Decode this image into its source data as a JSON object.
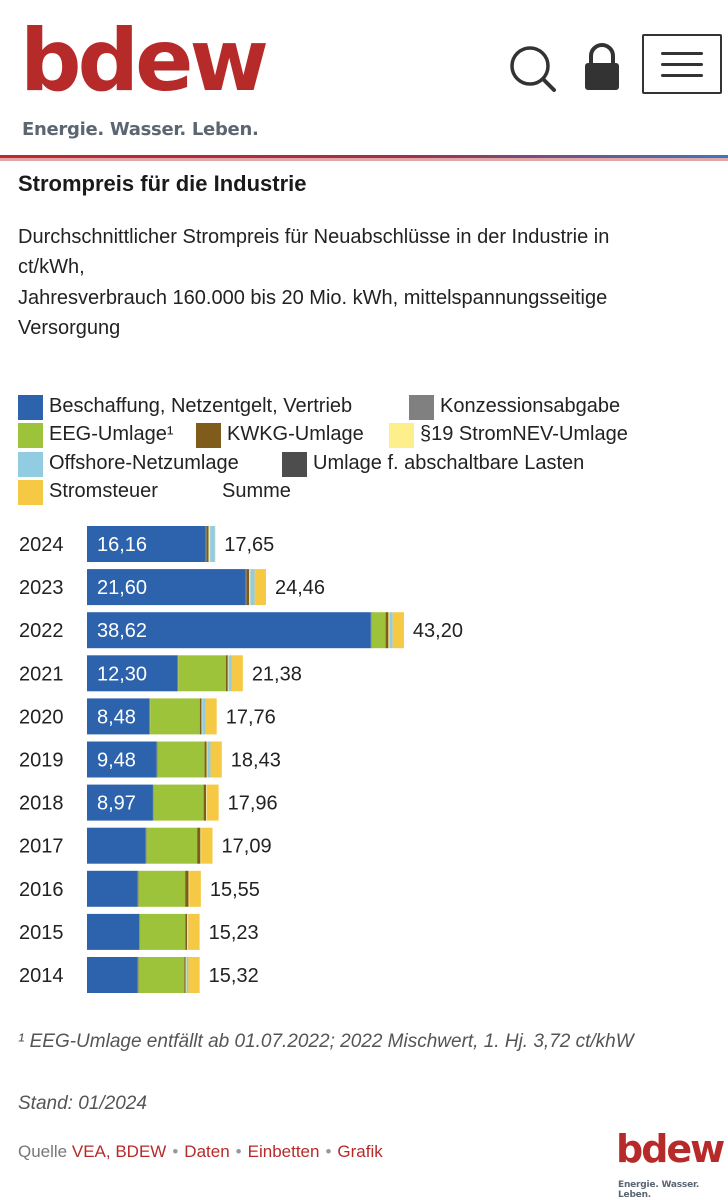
{
  "header": {
    "logo_text": "bdew",
    "tagline": "Energie. Wasser. Leben.",
    "brand_color": "#b72a2a",
    "icons": [
      "search-icon",
      "lock-icon",
      "hamburger-menu-icon"
    ]
  },
  "content": {
    "title": "Strompreis für die Industrie",
    "subtitle_line1": "Durchschnittlicher Strompreis für Neuabschlüsse in der Industrie in",
    "subtitle_line2": "ct/kWh,",
    "subtitle_line3": "Jahresverbrauch 160.000 bis 20 Mio. kWh, mittelspannungsseitige",
    "subtitle_line4": "Versorgung"
  },
  "legend": [
    {
      "label": "Beschaffung, Netzentgelt, Vertrieb",
      "color": "#2d63ad"
    },
    {
      "label": "Konzessionsabgabe",
      "color": "#808080"
    },
    {
      "label": "EEG-Umlage¹",
      "color": "#9dc33b"
    },
    {
      "label": "KWKG-Umlage",
      "color": "#7f5c1b"
    },
    {
      "label": "§19 StromNEV-Umlage",
      "color": "#fdf08c"
    },
    {
      "label": "Offshore-Netzumlage",
      "color": "#92cce0"
    },
    {
      "label": "Umlage f. abschaltbare Lasten",
      "color": "#4d4d4d"
    },
    {
      "label": "Stromsteuer",
      "color": "#f6c945"
    },
    {
      "label": "Summe",
      "color": ""
    }
  ],
  "chart_data": {
    "type": "bar",
    "orientation": "horizontal",
    "stacked": true,
    "categories": [
      "2024",
      "2023",
      "2022",
      "2021",
      "2020",
      "2019",
      "2018",
      "2017",
      "2016",
      "2015",
      "2014"
    ],
    "series": [
      {
        "name": "Beschaffung, Netzentgelt, Vertrieb",
        "color": "#2d63ad",
        "values": [
          16.16,
          21.6,
          38.62,
          12.3,
          8.48,
          9.48,
          8.97,
          8.0,
          6.9,
          7.1,
          6.9
        ]
      },
      {
        "name": "Konzessionsabgabe",
        "color": "#808080",
        "values": [
          0.11,
          0.11,
          0.11,
          0.11,
          0.11,
          0.11,
          0.11,
          0.11,
          0.11,
          0.11,
          0.11
        ]
      },
      {
        "name": "EEG-Umlage¹",
        "color": "#9dc33b",
        "values": [
          0.0,
          0.0,
          1.9,
          6.5,
          6.76,
          6.41,
          6.79,
          6.88,
          6.35,
          6.17,
          6.24
        ]
      },
      {
        "name": "KWKG-Umlage",
        "color": "#7f5c1b",
        "values": [
          0.28,
          0.36,
          0.38,
          0.25,
          0.23,
          0.28,
          0.35,
          0.44,
          0.45,
          0.25,
          0.18
        ]
      },
      {
        "name": "§19 StromNEV-Umlage",
        "color": "#fdf08c",
        "values": [
          0.2,
          0.15,
          0.15,
          0.1,
          0.1,
          0.1,
          0.1,
          0.1,
          0.1,
          0.1,
          0.1
        ]
      },
      {
        "name": "Offshore-Netzumlage",
        "color": "#92cce0",
        "values": [
          0.65,
          0.59,
          0.42,
          0.4,
          0.42,
          0.42,
          0.04,
          0.0,
          0.04,
          0.04,
          0.25
        ]
      },
      {
        "name": "Umlage f. abschaltbare Lasten",
        "color": "#4d4d4d",
        "values": [
          0.0,
          0.0,
          0.0,
          0.0,
          0.01,
          0.0,
          0.01,
          0.01,
          0.0,
          0.01,
          0.01
        ]
      },
      {
        "name": "Stromsteuer",
        "color": "#f6c945",
        "values": [
          0.05,
          1.54,
          1.54,
          1.54,
          1.54,
          1.54,
          1.54,
          1.54,
          1.54,
          1.54,
          1.54
        ]
      }
    ],
    "segment_labels": [
      "16,16",
      "21,60",
      "38,62",
      "12,30",
      "8,48",
      "9,48",
      "8,97",
      "",
      "",
      "",
      ""
    ],
    "totals": [
      17.65,
      24.46,
      43.2,
      21.38,
      17.76,
      18.43,
      17.96,
      17.09,
      15.55,
      15.23,
      15.32
    ],
    "total_labels": [
      "17,65",
      "24,46",
      "43,20",
      "21,38",
      "17,76",
      "18,43",
      "17,96",
      "17,09",
      "15,55",
      "15,23",
      "15,32"
    ],
    "xlim": [
      0,
      55
    ],
    "grid": false
  },
  "footnote": "¹ EEG-Umlage entfällt ab 01.07.2022; 2022 Mischwert, 1. Hj. 3,72 ct/khW",
  "stand": "Stand: 01/2024",
  "source": {
    "prefix": "Quelle",
    "source_link": "VEA, BDEW",
    "link_daten": "Daten",
    "link_einbetten": "Einbetten",
    "link_grafik": "Grafik",
    "separator": "•"
  }
}
